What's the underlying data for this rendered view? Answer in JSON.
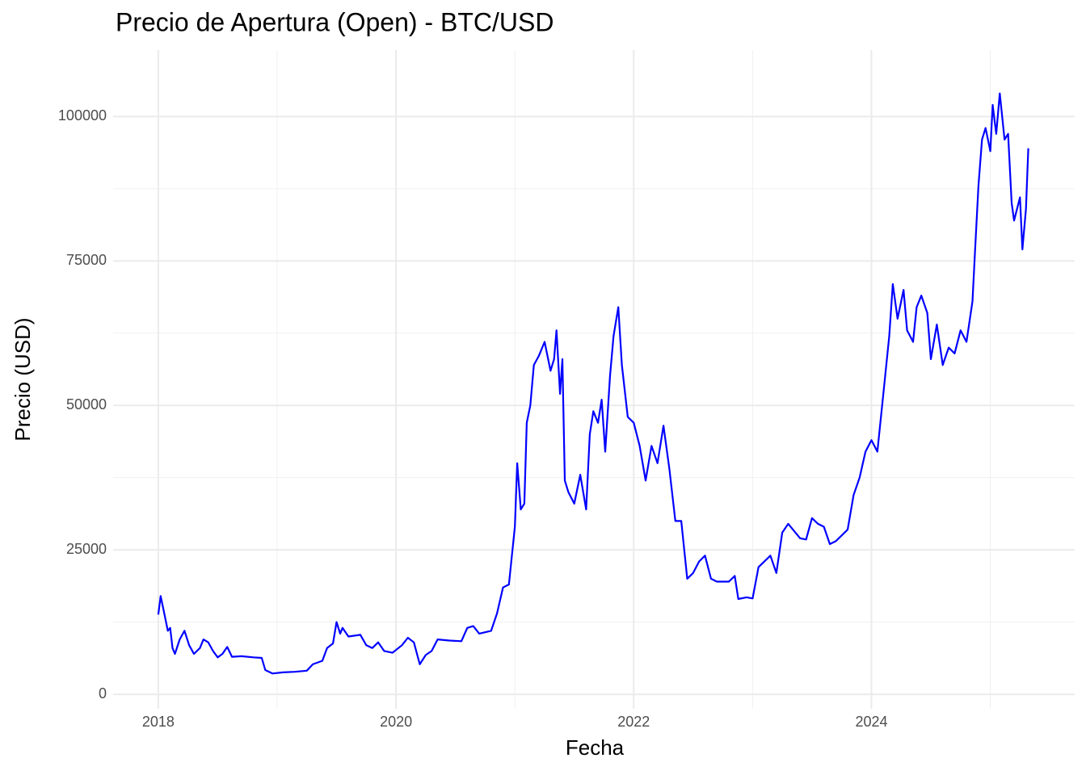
{
  "chart_data": {
    "type": "line",
    "title": "Precio de Apertura (Open) - BTC/USD",
    "x_label": "Fecha",
    "y_label": "Precio (USD)",
    "x": [
      2018.0,
      2018.02,
      2018.05,
      2018.08,
      2018.1,
      2018.12,
      2018.14,
      2018.18,
      2018.22,
      2018.26,
      2018.3,
      2018.35,
      2018.38,
      2018.42,
      2018.46,
      2018.5,
      2018.54,
      2018.58,
      2018.62,
      2018.7,
      2018.8,
      2018.87,
      2018.9,
      2018.96,
      2019.05,
      2019.15,
      2019.25,
      2019.3,
      2019.38,
      2019.42,
      2019.47,
      2019.5,
      2019.53,
      2019.55,
      2019.6,
      2019.7,
      2019.75,
      2019.8,
      2019.85,
      2019.9,
      2019.97,
      2020.05,
      2020.1,
      2020.15,
      2020.2,
      2020.25,
      2020.3,
      2020.35,
      2020.45,
      2020.55,
      2020.6,
      2020.65,
      2020.7,
      2020.8,
      2020.85,
      2020.9,
      2020.95,
      2021.0,
      2021.02,
      2021.05,
      2021.08,
      2021.1,
      2021.13,
      2021.16,
      2021.2,
      2021.25,
      2021.3,
      2021.33,
      2021.35,
      2021.38,
      2021.4,
      2021.42,
      2021.45,
      2021.5,
      2021.55,
      2021.6,
      2021.63,
      2021.66,
      2021.7,
      2021.73,
      2021.76,
      2021.8,
      2021.83,
      2021.87,
      2021.9,
      2021.95,
      2022.0,
      2022.05,
      2022.1,
      2022.15,
      2022.2,
      2022.25,
      2022.3,
      2022.35,
      2022.4,
      2022.45,
      2022.5,
      2022.55,
      2022.6,
      2022.65,
      2022.7,
      2022.8,
      2022.85,
      2022.88,
      2022.95,
      2023.0,
      2023.05,
      2023.15,
      2023.2,
      2023.25,
      2023.3,
      2023.4,
      2023.45,
      2023.5,
      2023.55,
      2023.6,
      2023.65,
      2023.7,
      2023.8,
      2023.85,
      2023.9,
      2023.95,
      2024.0,
      2024.05,
      2024.1,
      2024.15,
      2024.18,
      2024.22,
      2024.27,
      2024.3,
      2024.35,
      2024.38,
      2024.42,
      2024.47,
      2024.5,
      2024.55,
      2024.6,
      2024.65,
      2024.7,
      2024.75,
      2024.8,
      2024.85,
      2024.87,
      2024.9,
      2024.93,
      2024.96,
      2025.0,
      2025.02,
      2025.05,
      2025.08,
      2025.12,
      2025.15,
      2025.18,
      2025.2,
      2025.25,
      2025.27,
      2025.3,
      2025.32
    ],
    "series": [
      {
        "name": "Open",
        "color": "#0000ff",
        "values": [
          13800,
          17000,
          14000,
          11000,
          11500,
          8000,
          7000,
          9500,
          11000,
          8500,
          7000,
          8000,
          9500,
          9000,
          7500,
          6400,
          7000,
          8200,
          6500,
          6600,
          6400,
          6300,
          4200,
          3600,
          3800,
          3900,
          4100,
          5200,
          5800,
          8000,
          8800,
          12500,
          10500,
          11500,
          10000,
          10300,
          8500,
          8000,
          9000,
          7500,
          7200,
          8500,
          9800,
          9000,
          5200,
          6800,
          7500,
          9500,
          9300,
          9200,
          11500,
          11800,
          10500,
          11000,
          14000,
          18500,
          19000,
          29000,
          40000,
          32000,
          33000,
          47000,
          50000,
          57000,
          58500,
          61000,
          56000,
          58000,
          63000,
          52000,
          58000,
          37000,
          35000,
          33000,
          38000,
          32000,
          45000,
          49000,
          47000,
          51000,
          42000,
          55000,
          62000,
          67000,
          57000,
          48000,
          47000,
          43000,
          37000,
          43000,
          40000,
          46500,
          39000,
          30000,
          30000,
          20000,
          21000,
          23000,
          24000,
          20000,
          19500,
          19500,
          20500,
          16500,
          16800,
          16600,
          22000,
          24000,
          21000,
          28000,
          29500,
          27000,
          26800,
          30500,
          29500,
          29000,
          26000,
          26500,
          28500,
          34500,
          37500,
          42000,
          44000,
          42000,
          52000,
          62000,
          71000,
          65000,
          70000,
          63000,
          61000,
          67000,
          69000,
          66000,
          58000,
          64000,
          57000,
          60000,
          59000,
          63000,
          61000,
          68000,
          76000,
          88000,
          96000,
          98000,
          94000,
          102000,
          97000,
          104000,
          96000,
          97000,
          85000,
          82000,
          86000,
          77000,
          84000,
          94500
        ]
      }
    ],
    "xlim": [
      2017.62,
      2025.71
    ],
    "xticks": [
      2018,
      2020,
      2022,
      2024
    ],
    "ylim": [
      -2500,
      111500
    ],
    "yticks": [
      0,
      25000,
      50000,
      75000,
      100000
    ],
    "grid": true
  }
}
